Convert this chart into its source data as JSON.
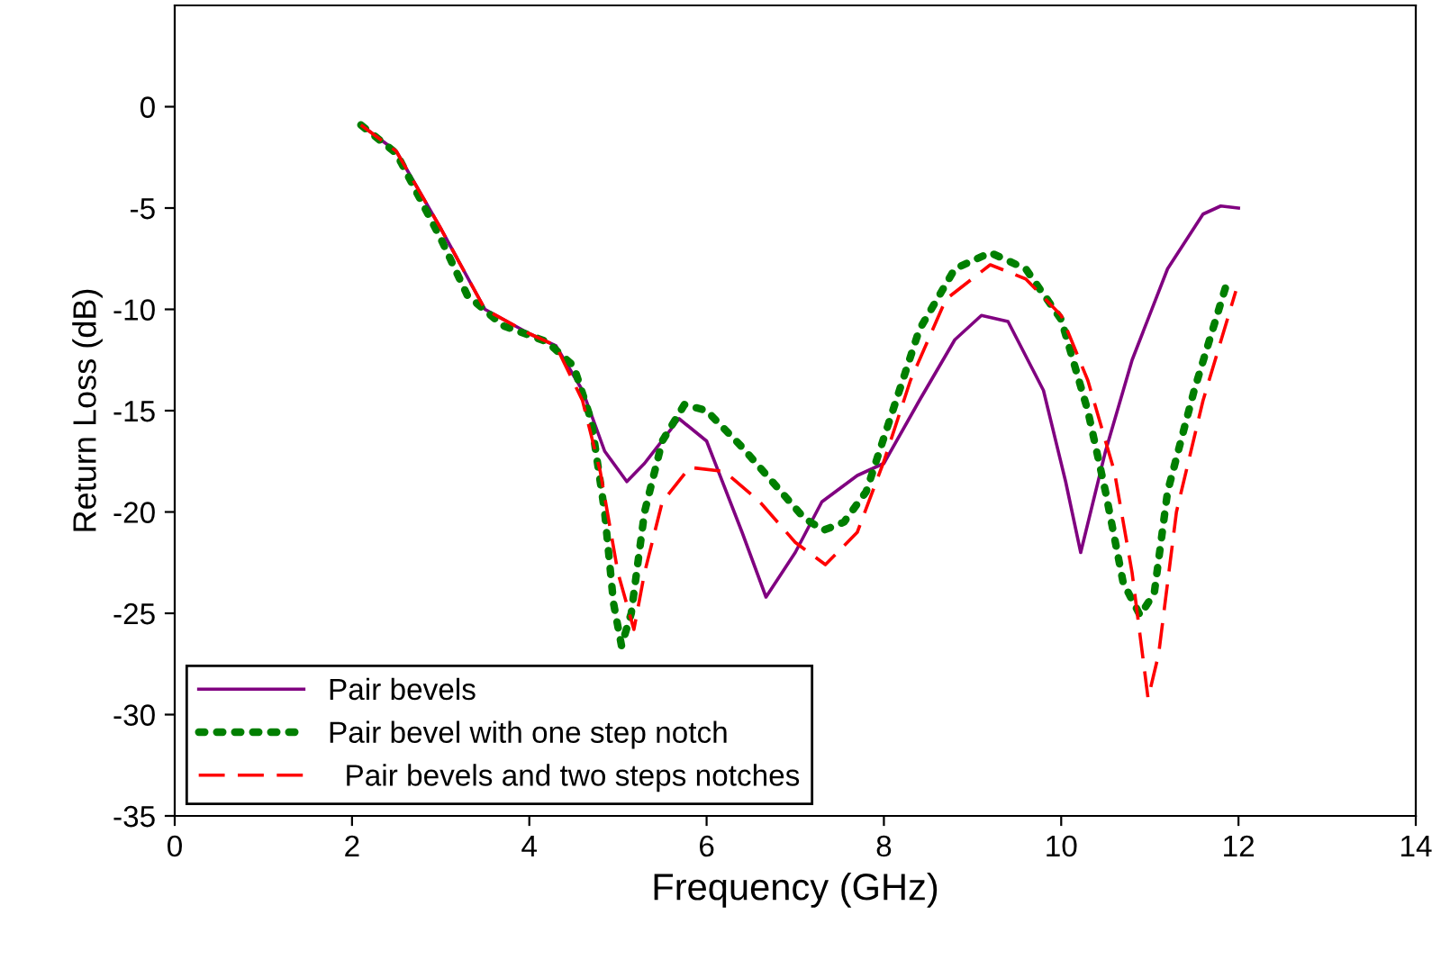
{
  "chart_data": {
    "type": "line",
    "xlabel": "Frequency (GHz)",
    "ylabel": "Return Loss (dB)",
    "xlim": [
      0,
      14
    ],
    "ylim": [
      -35,
      5
    ],
    "xticks": [
      0,
      2,
      4,
      6,
      8,
      10,
      12,
      14
    ],
    "yticks": [
      0,
      -5,
      -10,
      -15,
      -20,
      -25,
      -30,
      -35
    ],
    "grid": false,
    "legend": "bottom left",
    "marker": "none",
    "series": [
      {
        "name": "Pair bevels",
        "color": "#800080",
        "line_style": "solid",
        "x": [
          2.1,
          2.5,
          3.0,
          3.5,
          4.0,
          4.3,
          4.6,
          4.85,
          5.1,
          5.3,
          5.69,
          6.0,
          6.4,
          6.67,
          7.0,
          7.3,
          7.7,
          8.0,
          8.4,
          8.8,
          9.1,
          9.4,
          9.8,
          10.05,
          10.22,
          10.5,
          10.8,
          11.2,
          11.6,
          11.8,
          12.0
        ],
        "values": [
          -0.9,
          -2.2,
          -6,
          -10,
          -11.2,
          -11.8,
          -14,
          -17,
          -18.5,
          -17.6,
          -15.4,
          -16.5,
          -21,
          -24.2,
          -22,
          -19.5,
          -18.2,
          -17.6,
          -14.5,
          -11.5,
          -10.3,
          -10.6,
          -14,
          -18.5,
          -22,
          -17,
          -12.5,
          -8,
          -5.3,
          -4.9,
          -5.0
        ]
      },
      {
        "name": "Pair bevel with one step notch",
        "color": "#007f00",
        "line_style": "dotted",
        "x": [
          2.1,
          2.5,
          3.0,
          3.3,
          3.7,
          4.2,
          4.5,
          4.7,
          4.85,
          4.95,
          5.04,
          5.15,
          5.3,
          5.5,
          5.75,
          6.0,
          6.4,
          6.8,
          7.1,
          7.32,
          7.55,
          7.8,
          8.1,
          8.4,
          8.8,
          9.2,
          9.6,
          10.0,
          10.3,
          10.5,
          10.7,
          10.89,
          11.05,
          11.2,
          11.5,
          11.89
        ],
        "values": [
          -0.9,
          -2.3,
          -6.5,
          -9.3,
          -10.8,
          -11.6,
          -12.8,
          -15.5,
          -20,
          -24.5,
          -26.6,
          -25,
          -20,
          -16.5,
          -14.7,
          -15,
          -16.8,
          -18.8,
          -20.3,
          -20.9,
          -20.5,
          -19,
          -15,
          -11,
          -8,
          -7.2,
          -8,
          -10.5,
          -15,
          -19,
          -23.5,
          -25.1,
          -24,
          -19,
          -14,
          -8.4
        ]
      },
      {
        "name": "  Pair bevels and two steps notches",
        "color": "#ff0000",
        "line_style": "dashed",
        "x": [
          2.1,
          2.5,
          3.0,
          3.5,
          4.0,
          4.3,
          4.6,
          4.8,
          5.0,
          5.18,
          5.3,
          5.5,
          5.81,
          6.2,
          6.6,
          7.0,
          7.34,
          7.7,
          8.0,
          8.3,
          8.7,
          9.2,
          9.6,
          10.0,
          10.3,
          10.6,
          10.8,
          10.98,
          11.1,
          11.3,
          11.6,
          11.97
        ],
        "values": [
          -0.9,
          -2.2,
          -6,
          -10,
          -11.2,
          -11.8,
          -14.5,
          -18,
          -23,
          -25.8,
          -23,
          -19.5,
          -17.8,
          -18,
          -19.5,
          -21.5,
          -22.6,
          -21,
          -17.5,
          -13.5,
          -9.5,
          -7.8,
          -8.5,
          -10.3,
          -13.5,
          -18,
          -23,
          -29.2,
          -27,
          -20,
          -14.5,
          -9.1
        ]
      }
    ]
  }
}
